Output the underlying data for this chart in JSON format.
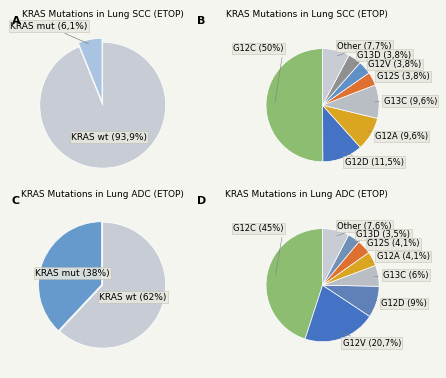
{
  "panel_A": {
    "title": "KRAS Mutations in Lung SCC (ETOP)",
    "label": "A",
    "slices": [
      6.1,
      93.9
    ],
    "slice_labels": [
      "KRAS mut (6,1%)",
      "KRAS wt (93,9%)"
    ],
    "colors": [
      "#a8c4e0",
      "#c8ccd4"
    ],
    "startangle": 90,
    "explode": [
      0.06,
      0
    ]
  },
  "panel_B": {
    "title": "KRAS Mutations in Lung SCC (ETOP)",
    "label": "B",
    "slices": [
      50,
      11.5,
      9.6,
      9.6,
      3.8,
      3.8,
      3.8,
      7.7
    ],
    "slice_labels": [
      "G12C (50%)",
      "G12D (11,5%)",
      "G12A (9,6%)",
      "G13C (9,6%)",
      "G12S (3,8%)",
      "G12V (3,8%)",
      "G13D (3,8%)",
      "Other (7,7%)"
    ],
    "colors": [
      "#8cbd70",
      "#4472c4",
      "#daa520",
      "#b8bec4",
      "#e07030",
      "#6090c8",
      "#909090",
      "#c8ccd4"
    ],
    "startangle": 90
  },
  "panel_C": {
    "title": "KRAS Mutations in Lung ADC (ETOP)",
    "label": "C",
    "slices": [
      38,
      62
    ],
    "slice_labels": [
      "KRAS mut (38%)",
      "KRAS wt (62%)"
    ],
    "colors": [
      "#6699cc",
      "#c8ccd4"
    ],
    "startangle": 90,
    "explode": [
      0.02,
      0
    ]
  },
  "panel_D": {
    "title": "KRAS Mutations in Lung ADC (ETOP)",
    "label": "D",
    "slices": [
      45,
      20.7,
      9,
      6,
      4.1,
      4.1,
      3.5,
      7.6
    ],
    "slice_labels": [
      "G12C (45%)",
      "G12V (20,7%)",
      "G12D (9%)",
      "G13C (6%)",
      "G12A (4,1%)",
      "G12S (4,1%)",
      "G13D (3,5%)",
      "Other (7,6%)"
    ],
    "colors": [
      "#8cbd70",
      "#4472c4",
      "#6080b8",
      "#b8bec4",
      "#daa520",
      "#e07030",
      "#7090b8",
      "#c8ccd4"
    ],
    "startangle": 90
  },
  "bg_color": "#f5f5f0",
  "label_fontsize": 6.0,
  "title_fontsize": 6.5,
  "panel_label_fontsize": 8,
  "box_color": "#e8e8e0"
}
